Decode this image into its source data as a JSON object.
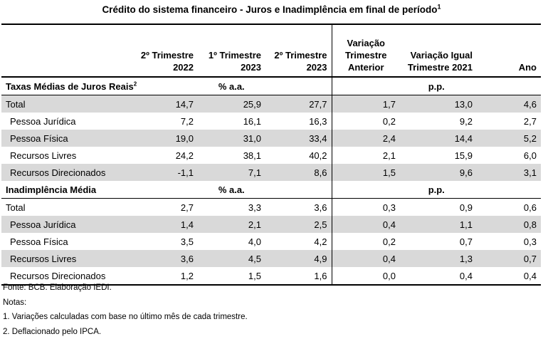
{
  "title": "Crédito do  sistema financeiro - Juros e Inadimplência em final de período",
  "title_sup": "1",
  "columns": {
    "c1": [
      "2º Trimestre",
      "2022"
    ],
    "c2": [
      "1º Trimestre",
      "2023"
    ],
    "c3": [
      "2º Trimestre",
      "2023"
    ],
    "c4": [
      "Variação",
      "Trimestre",
      "Anterior"
    ],
    "c5": [
      "Variação Igual",
      "Trimestre 2021"
    ],
    "c6": [
      "Ano"
    ]
  },
  "sections": [
    {
      "label": "Taxas Médias de Juros Reais",
      "label_sup": "2",
      "unit_left": "% a.a.",
      "unit_right": "p.p.",
      "rows": [
        {
          "label": "Total",
          "values": [
            "14,7",
            "25,9",
            "27,7",
            "1,7",
            "13,0",
            "4,6"
          ]
        },
        {
          "label": "Pessoa Jurídica",
          "values": [
            "7,2",
            "16,1",
            "16,3",
            "0,2",
            "9,2",
            "2,7"
          ]
        },
        {
          "label": "Pessoa Física",
          "values": [
            "19,0",
            "31,0",
            "33,4",
            "2,4",
            "14,4",
            "5,2"
          ]
        },
        {
          "label": "Recursos Livres",
          "values": [
            "24,2",
            "38,1",
            "40,2",
            "2,1",
            "15,9",
            "6,0"
          ]
        },
        {
          "label": "Recursos Direcionados",
          "values": [
            "-1,1",
            "7,1",
            "8,6",
            "1,5",
            "9,6",
            "3,1"
          ]
        }
      ]
    },
    {
      "label": "Inadimplência Média",
      "label_sup": "",
      "unit_left": "% a.a.",
      "unit_right": "p.p.",
      "rows": [
        {
          "label": "Total",
          "values": [
            "2,7",
            "3,3",
            "3,6",
            "0,3",
            "0,9",
            "0,6"
          ]
        },
        {
          "label": "Pessoa Jurídica",
          "values": [
            "1,4",
            "2,1",
            "2,5",
            "0,4",
            "1,1",
            "0,8"
          ]
        },
        {
          "label": "Pessoa Física",
          "values": [
            "3,5",
            "4,0",
            "4,2",
            "0,2",
            "0,7",
            "0,3"
          ]
        },
        {
          "label": "Recursos Livres",
          "values": [
            "3,6",
            "4,5",
            "4,9",
            "0,4",
            "1,3",
            "0,7"
          ]
        },
        {
          "label": "Recursos Direcionados",
          "values": [
            "1,2",
            "1,5",
            "1,6",
            "0,0",
            "0,4",
            "0,4"
          ]
        }
      ]
    }
  ],
  "notes": [
    "Fonte: BCB. Elaboração IEDI.",
    "Notas:",
    "1.  Variações calculadas com base no último mês de cada trimestre.",
    "2. Deflacionado pelo IPCA."
  ]
}
